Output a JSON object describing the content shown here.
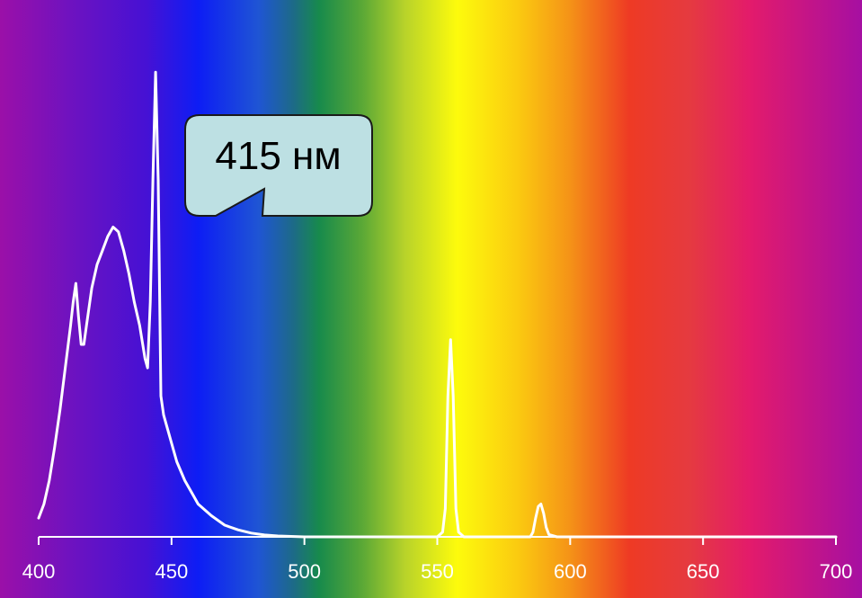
{
  "chart_data": {
    "type": "line",
    "title": "",
    "xlabel": "",
    "ylabel": "",
    "xlim": [
      400,
      700
    ],
    "ylim": [
      0,
      1
    ],
    "x_ticks": [
      400,
      450,
      500,
      550,
      600,
      650,
      700
    ],
    "x_tick_labels": [
      "400",
      "450",
      "500",
      "550",
      "600",
      "650",
      "700"
    ],
    "grid": false,
    "legend": "none",
    "background": "visible-spectrum gradient",
    "series": [
      {
        "color": "#ffffff",
        "x": [
          400,
          402,
          404,
          406,
          408,
          410,
          412,
          413,
          414,
          415,
          416,
          417,
          418,
          420,
          422,
          424,
          426,
          428,
          430,
          432,
          434,
          436,
          438,
          440,
          441,
          442,
          443,
          444,
          445,
          446,
          447,
          448,
          450,
          452,
          455,
          458,
          460,
          465,
          470,
          475,
          480,
          485,
          490,
          495,
          500,
          505,
          510,
          520,
          530,
          540,
          550,
          552,
          553,
          554,
          555,
          556,
          557,
          558,
          560,
          570,
          580,
          585,
          586,
          587,
          588,
          589,
          590,
          591,
          592,
          595,
          600,
          650,
          700
        ],
        "y": [
          0.04,
          0.07,
          0.12,
          0.19,
          0.27,
          0.36,
          0.45,
          0.5,
          0.54,
          0.47,
          0.41,
          0.41,
          0.45,
          0.53,
          0.58,
          0.61,
          0.64,
          0.66,
          0.65,
          0.61,
          0.56,
          0.5,
          0.45,
          0.38,
          0.36,
          0.5,
          0.76,
          0.99,
          0.76,
          0.3,
          0.26,
          0.24,
          0.2,
          0.16,
          0.12,
          0.09,
          0.07,
          0.045,
          0.025,
          0.015,
          0.008,
          0.004,
          0.002,
          0.001,
          0.0,
          0.0,
          0.0,
          0.0,
          0.0,
          0.0,
          0.0,
          0.01,
          0.06,
          0.3,
          0.42,
          0.3,
          0.06,
          0.01,
          0.0,
          0.0,
          0.0,
          0.0,
          0.01,
          0.04,
          0.065,
          0.07,
          0.05,
          0.02,
          0.005,
          0.0,
          0.0,
          0.0,
          0.0
        ]
      }
    ],
    "annotations": [
      {
        "text": "415 нм",
        "points_to_x": 415
      }
    ]
  }
}
